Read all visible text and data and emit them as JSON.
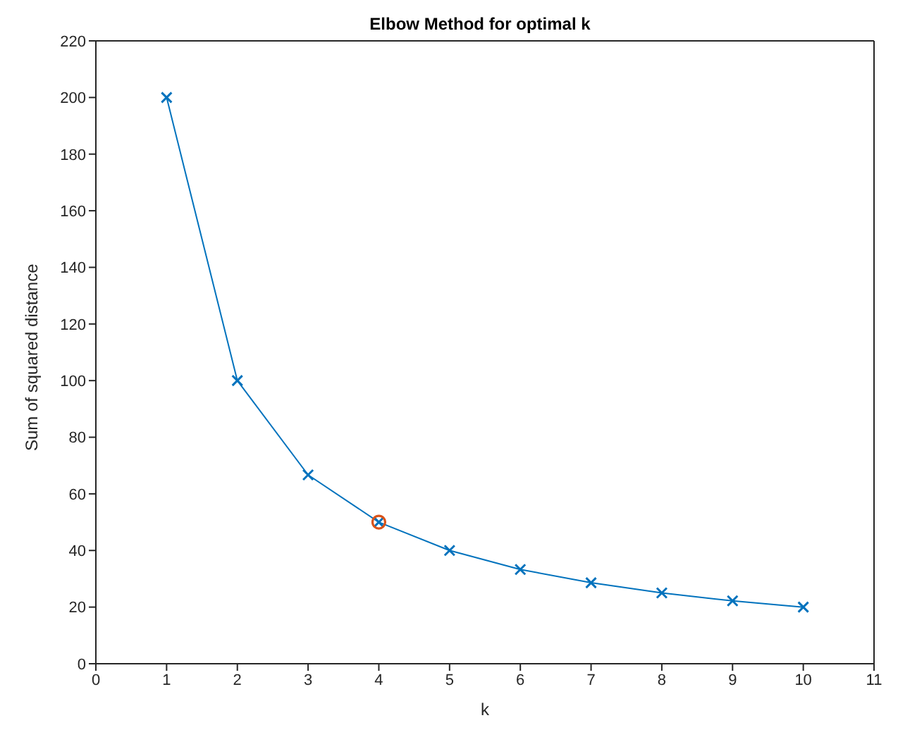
{
  "chart_data": {
    "type": "line",
    "title": "Elbow Method for optimal k",
    "xlabel": "k",
    "ylabel": "Sum of squared distance",
    "xlim": [
      0,
      11
    ],
    "xticks": [
      0,
      1,
      2,
      3,
      4,
      5,
      6,
      7,
      8,
      9,
      10,
      11
    ],
    "ylim": [
      0,
      220
    ],
    "yticks": [
      0,
      20,
      40,
      60,
      80,
      100,
      120,
      140,
      160,
      180,
      200,
      220
    ],
    "series": [
      {
        "type": "line",
        "color": "#0072bd",
        "marker": "cross",
        "x": [
          1,
          2,
          3,
          4,
          5,
          6,
          7,
          8,
          9,
          10
        ],
        "values": [
          200,
          100,
          66.7,
          50,
          40,
          33.3,
          28.6,
          25,
          22.2,
          20
        ]
      },
      {
        "type": "scatter",
        "color": "#d95319",
        "marker": "circle",
        "x": [
          4
        ],
        "values": [
          50
        ]
      }
    ]
  }
}
